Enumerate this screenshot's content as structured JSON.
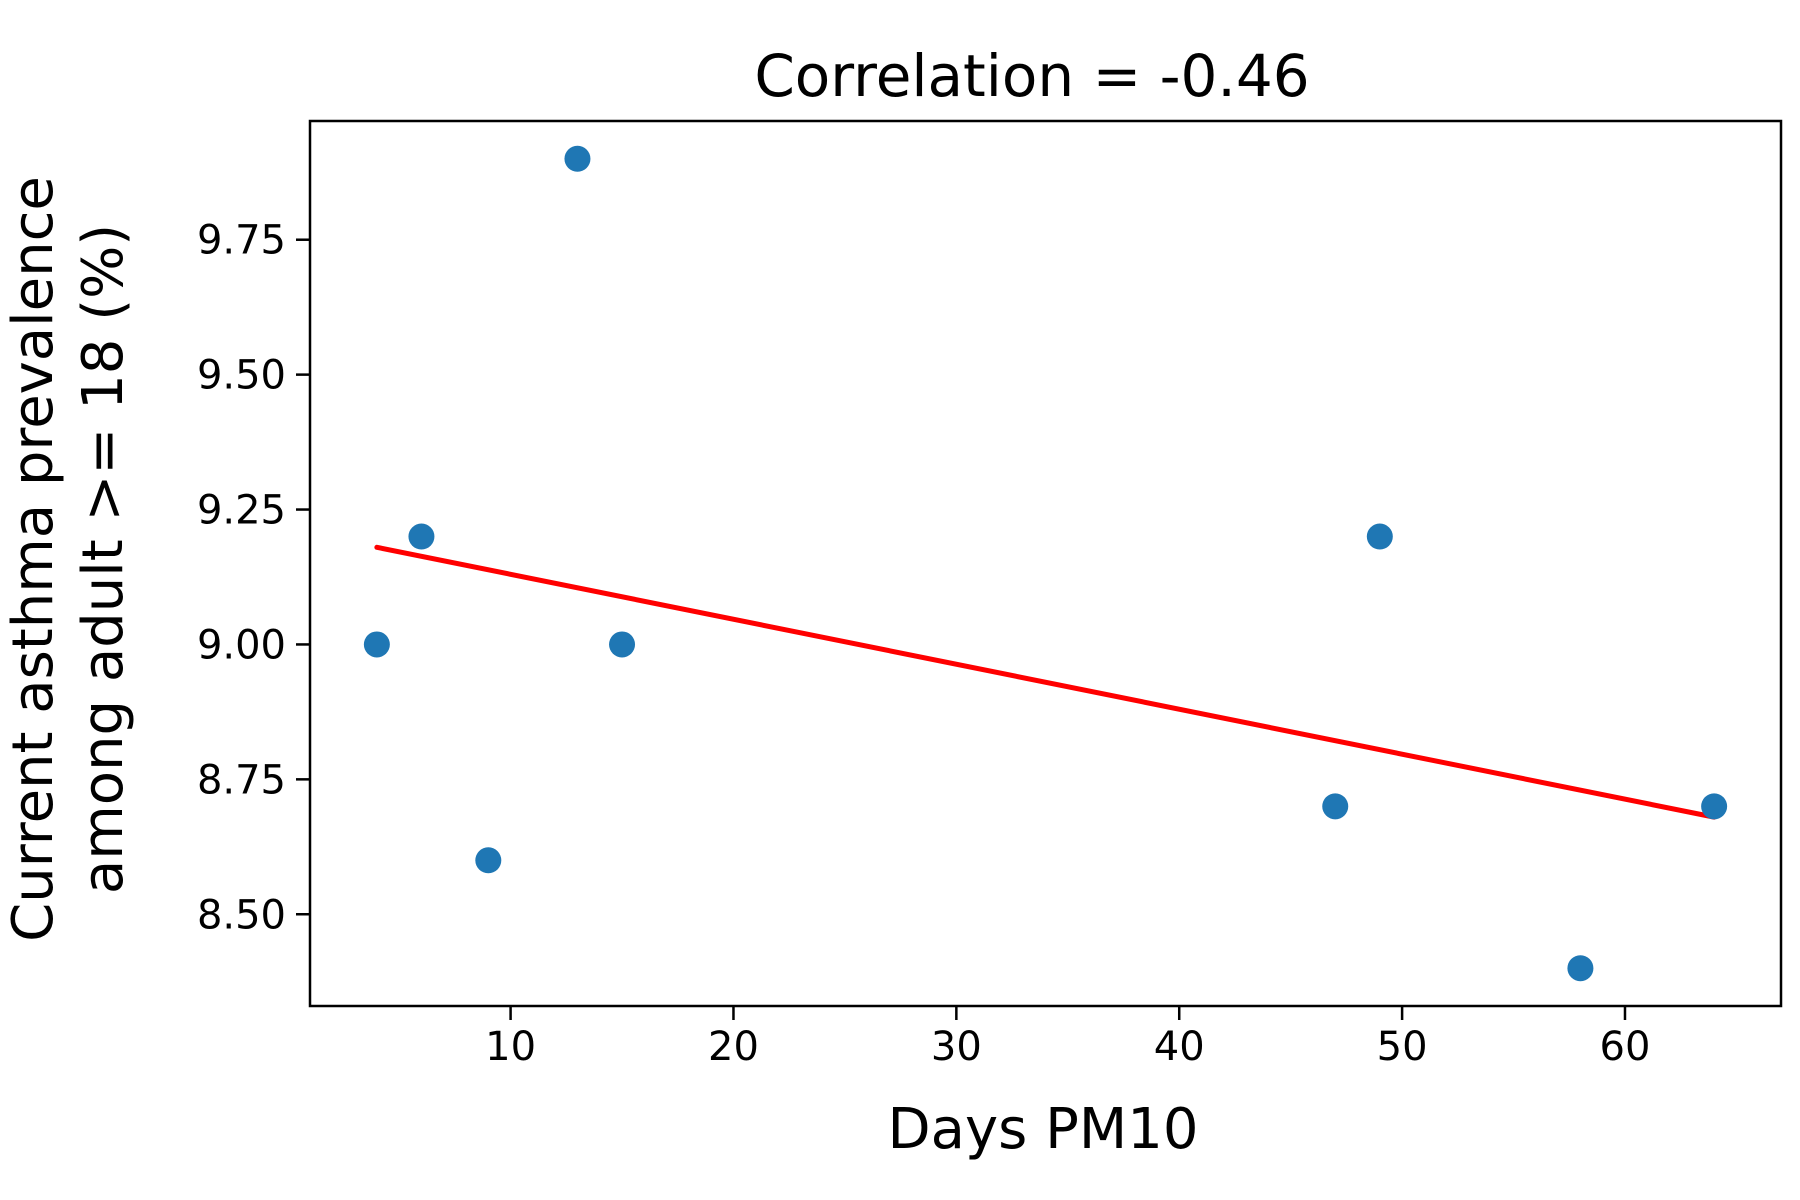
{
  "chart_data": {
    "type": "scatter",
    "title": "Correlation = -0.46",
    "xlabel": "Days PM10",
    "ylabel_lines": [
      "Current asthma prevalence",
      "among adult >= 18 (%)"
    ],
    "xlim": [
      1,
      67
    ],
    "ylim": [
      8.33,
      9.97
    ],
    "x_ticks": [
      10,
      20,
      30,
      40,
      50,
      60
    ],
    "x_tick_labels": [
      "10",
      "20",
      "30",
      "40",
      "50",
      "60"
    ],
    "y_ticks": [
      8.5,
      8.75,
      9.0,
      9.25,
      9.5,
      9.75
    ],
    "y_tick_labels": [
      "8.50",
      "8.75",
      "9.00",
      "9.25",
      "9.50",
      "9.75"
    ],
    "grid": false,
    "points": [
      {
        "x": 4,
        "y": 9.0
      },
      {
        "x": 6,
        "y": 9.2
      },
      {
        "x": 9,
        "y": 8.6
      },
      {
        "x": 13,
        "y": 9.9
      },
      {
        "x": 15,
        "y": 9.0
      },
      {
        "x": 47,
        "y": 8.7
      },
      {
        "x": 49,
        "y": 9.2
      },
      {
        "x": 58,
        "y": 8.4
      },
      {
        "x": 64,
        "y": 8.7
      }
    ],
    "trend_line": {
      "x": [
        4,
        64
      ],
      "y": [
        9.18,
        8.68
      ]
    },
    "colors": {
      "points": "#1f77b4",
      "trend_line": "#ff0000",
      "axes": "#000000"
    }
  }
}
